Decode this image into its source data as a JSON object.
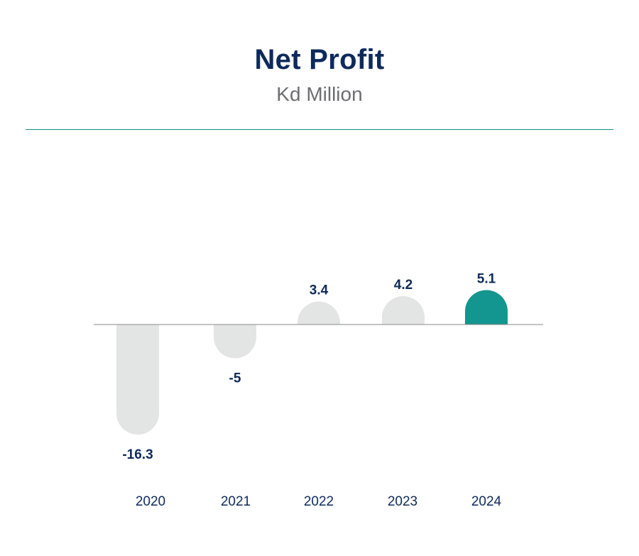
{
  "chart_data": {
    "type": "bar",
    "title": "Net Profit",
    "subtitle": "Kd Million",
    "categories": [
      "2020",
      "2021",
      "2022",
      "2023",
      "2024"
    ],
    "values": [
      -16.3,
      -5,
      3.4,
      4.2,
      5.1
    ],
    "value_labels": [
      "-16.3",
      "-5",
      "3.4",
      "4.2",
      "5.1"
    ],
    "highlight_index": 4,
    "xlabel": "",
    "ylabel": "",
    "grid": false,
    "colors": {
      "bar": "#e3e4e4",
      "highlight": "#13968f",
      "label": "#0d2a5c",
      "baseline": "#8a8a8a",
      "divider": "#1a8a83"
    }
  }
}
